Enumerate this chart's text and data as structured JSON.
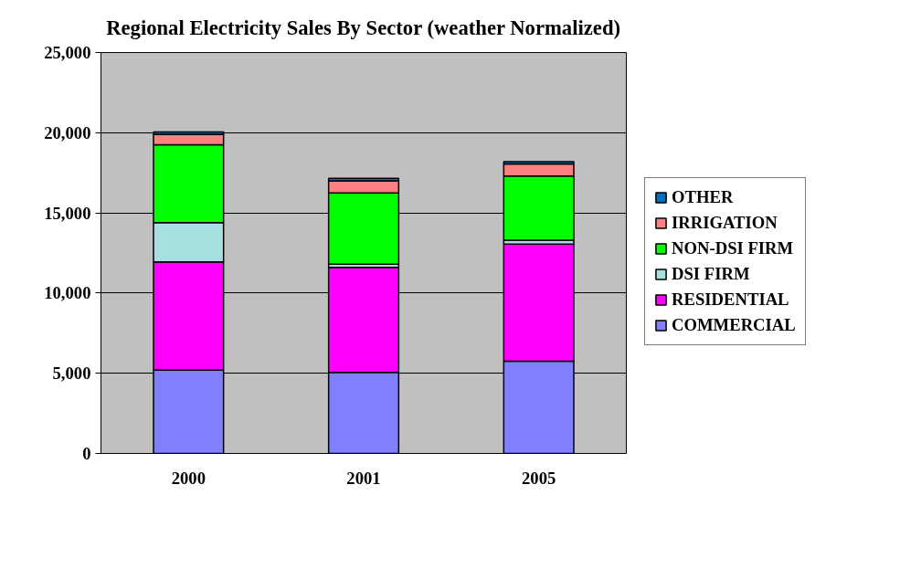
{
  "chart_data": {
    "type": "bar",
    "stacked": true,
    "title": "Regional Electricity Sales By Sector (weather Normalized)",
    "categories": [
      "2000",
      "2001",
      "2005"
    ],
    "series": [
      {
        "name": "COMMERCIAL",
        "color": "#8080ff",
        "values": [
          5200,
          5050,
          5750
        ]
      },
      {
        "name": "RESIDENTIAL",
        "color": "#ff00ff",
        "values": [
          6750,
          6550,
          7300
        ]
      },
      {
        "name": "DSI FIRM",
        "color": "#a6e0e0",
        "values": [
          2450,
          200,
          250
        ]
      },
      {
        "name": "NON-DSI FIRM",
        "color": "#00ff00",
        "values": [
          4850,
          4450,
          4000
        ]
      },
      {
        "name": "IRRIGATION",
        "color": "#ff8080",
        "values": [
          650,
          750,
          750
        ]
      },
      {
        "name": "OTHER",
        "color": "#0070c0",
        "values": [
          150,
          150,
          150
        ]
      }
    ],
    "ylim": [
      0,
      25000
    ],
    "yticks": [
      {
        "value": 0,
        "label": "0"
      },
      {
        "value": 5000,
        "label": "5,000"
      },
      {
        "value": 10000,
        "label": "10,000"
      },
      {
        "value": 15000,
        "label": "15,000"
      },
      {
        "value": 20000,
        "label": "20,000"
      },
      {
        "value": 25000,
        "label": "25,000"
      }
    ],
    "grid": "y",
    "legend": "right"
  }
}
